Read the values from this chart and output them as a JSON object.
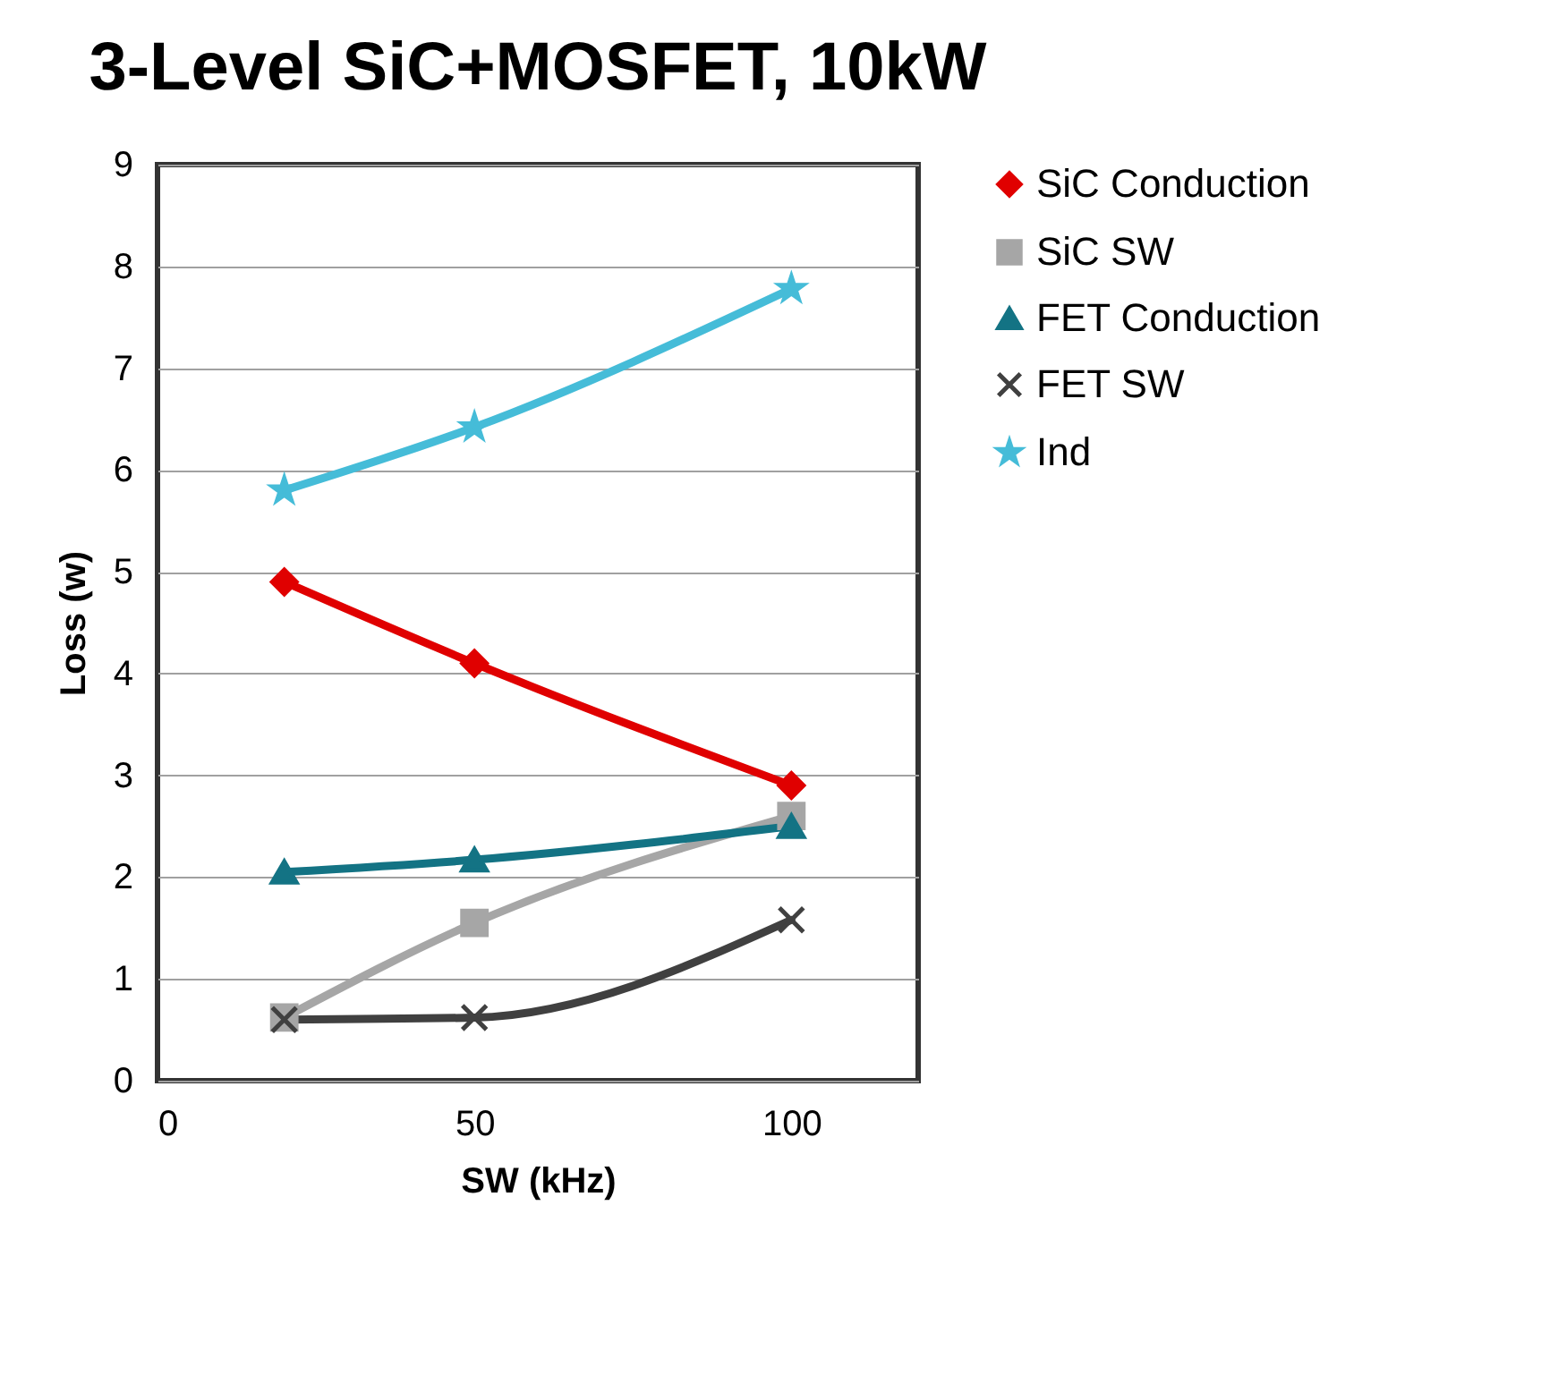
{
  "chart_data": {
    "type": "line",
    "title": "3-Level SiC+MOSFET, 10kW",
    "xlabel": "SW (kHz)",
    "ylabel": "Loss (w)",
    "x": [
      20,
      50,
      100
    ],
    "series": [
      {
        "name": "SiC Conduction",
        "color": "#e00000",
        "marker": "diamond",
        "values": [
          4.9,
          4.1,
          2.9
        ]
      },
      {
        "name": "SiC SW",
        "color": "#a6a6a6",
        "marker": "square",
        "values": [
          0.62,
          1.55,
          2.6
        ]
      },
      {
        "name": "FET Conduction",
        "color": "#137384",
        "marker": "triangle",
        "values": [
          2.05,
          2.17,
          2.5
        ]
      },
      {
        "name": "FET SW",
        "color": "#404040",
        "marker": "cross",
        "values": [
          0.6,
          0.62,
          1.58
        ]
      },
      {
        "name": "Ind",
        "color": "#45bcd8",
        "marker": "star",
        "values": [
          5.8,
          6.42,
          7.78
        ]
      }
    ],
    "xlim": [
      0,
      120
    ],
    "xticks": [
      0,
      50,
      100
    ],
    "ylim": [
      0,
      9
    ],
    "yticks": [
      0,
      1,
      2,
      3,
      4,
      5,
      6,
      7,
      8,
      9
    ],
    "grid": "y",
    "legend": "right",
    "line_style": "solid"
  }
}
